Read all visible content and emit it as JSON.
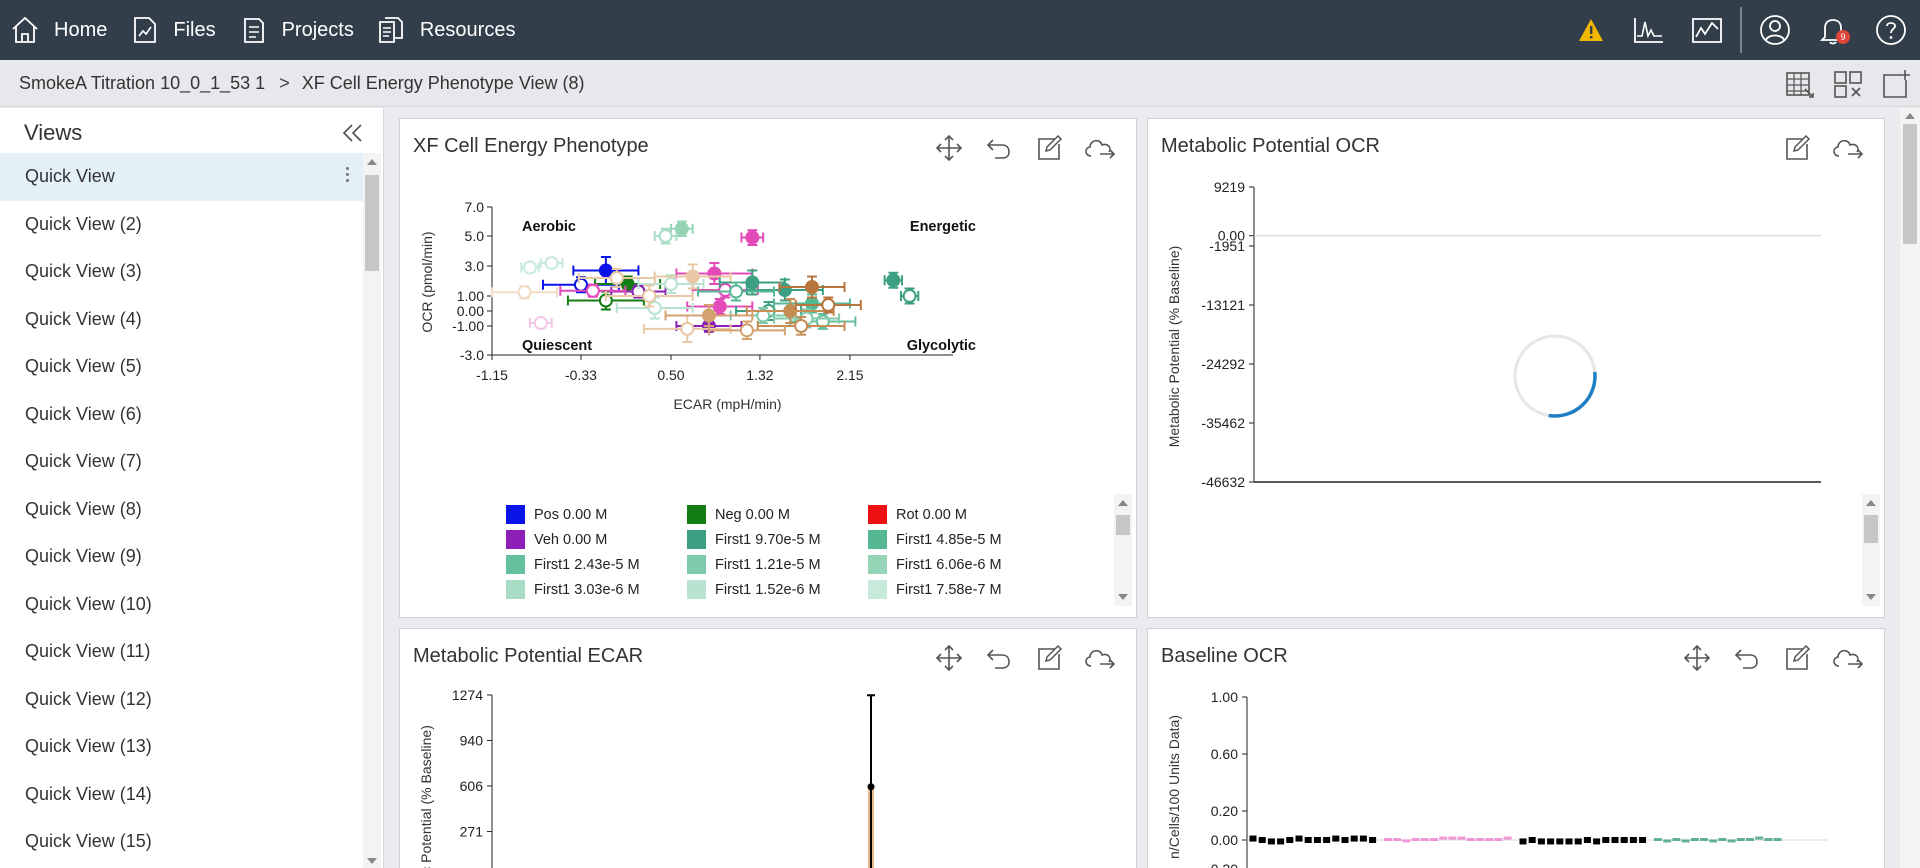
{
  "nav": {
    "items": [
      {
        "label": "Home",
        "icon": "home-icon"
      },
      {
        "label": "Files",
        "icon": "files-icon"
      },
      {
        "label": "Projects",
        "icon": "projects-icon"
      },
      {
        "label": "Resources",
        "icon": "resources-icon"
      }
    ],
    "right_icons": [
      "warning-icon",
      "waveform-icon",
      "analysis-icon",
      "user-icon",
      "bell-icon",
      "help-icon"
    ],
    "notification_count": "9",
    "warning_color": "#f5b800"
  },
  "breadcrumb": {
    "items": [
      "SmokeA Titration 10_0_1_53 1",
      "XF Cell Energy Phenotype View (8)"
    ],
    "separator": ">",
    "tools": [
      "table-view-icon",
      "layout-grid-icon",
      "add-view-icon"
    ]
  },
  "sidebar": {
    "title": "Views",
    "active_index": 0,
    "items": [
      "Quick View",
      "Quick View (2)",
      "Quick View (3)",
      "Quick View (4)",
      "Quick View (5)",
      "Quick View (6)",
      "Quick View (7)",
      "Quick View (8)",
      "Quick View (9)",
      "Quick View (10)",
      "Quick View (11)",
      "Quick View (12)",
      "Quick View (13)",
      "Quick View (14)",
      "Quick View (15)"
    ]
  },
  "panels": {
    "phenotype": {
      "title": "XF Cell Energy Phenotype",
      "tools": [
        "move-icon",
        "undo-icon",
        "edit-icon",
        "cloud-export-icon"
      ]
    },
    "mp_ocr": {
      "title": "Metabolic Potential OCR",
      "tools": [
        "edit-icon",
        "cloud-export-icon"
      ],
      "loading": true
    },
    "mp_ecar": {
      "title": "Metabolic Potential ECAR",
      "tools": [
        "move-icon",
        "undo-icon",
        "edit-icon",
        "cloud-export-icon"
      ]
    },
    "baseline_ocr": {
      "title": "Baseline OCR",
      "tools": [
        "move-icon",
        "undo-icon",
        "edit-icon",
        "cloud-export-icon"
      ]
    }
  },
  "chart_data": [
    {
      "id": "phenotype",
      "type": "scatter",
      "title": "",
      "xlabel": "ECAR (mpH/min)",
      "ylabel": "OCR (pmol/min)",
      "xticks": [
        "-1.15",
        "-0.33",
        "0.50",
        "1.32",
        "2.15"
      ],
      "xtick_values": [
        -1.15,
        -0.33,
        0.5,
        1.32,
        2.15
      ],
      "yticks": [
        "7.0",
        "5.0",
        "3.0",
        "1.00",
        "0.00",
        "-1.00",
        "-3.0"
      ],
      "ytick_values": [
        7.0,
        5.0,
        3.0,
        1.0,
        0.0,
        -1.0,
        -3.0
      ],
      "xlim": [
        -1.15,
        3.1
      ],
      "ylim": [
        -3.0,
        7.0
      ],
      "quadrants": [
        "Aerobic",
        "Energetic",
        "Quiescent",
        "Glycolytic"
      ],
      "legend": [
        {
          "name": "Pos 0.00 M",
          "color": "#0a14e8"
        },
        {
          "name": "Neg 0.00 M",
          "color": "#137d13"
        },
        {
          "name": "Rot 0.00 M",
          "color": "#ee1111"
        },
        {
          "name": "Veh 0.00 M",
          "color": "#8b1fb8"
        },
        {
          "name": "First1 9.70e-5 M",
          "color": "#3c9f82"
        },
        {
          "name": "First1 4.85e-5 M",
          "color": "#56b893"
        },
        {
          "name": "First1 2.43e-5 M",
          "color": "#64bf9c"
        },
        {
          "name": "First1 1.21e-5 M",
          "color": "#7fcaaa"
        },
        {
          "name": "First1 6.06e-6 M",
          "color": "#96d4b8"
        },
        {
          "name": "First1 3.03e-6 M",
          "color": "#a8dcc4"
        },
        {
          "name": "First1 1.52e-6 M",
          "color": "#b9e3d0"
        },
        {
          "name": "First1 7.58e-7 M",
          "color": "#c8eadb"
        }
      ],
      "points": [
        {
          "x": -0.1,
          "y": 2.7,
          "xerr": 0.3,
          "yerr": 0.9,
          "color": "#0a14e8",
          "filled": true
        },
        {
          "x": -0.33,
          "y": 1.75,
          "xerr": 0.35,
          "yerr": 0.5,
          "color": "#0a14e8",
          "filled": false
        },
        {
          "x": -0.1,
          "y": 0.7,
          "xerr": 0.35,
          "yerr": 0.6,
          "color": "#137d13",
          "filled": false
        },
        {
          "x": 0.1,
          "y": 1.8,
          "xerr": 0.3,
          "yerr": 0.5,
          "color": "#137d13",
          "filled": true
        },
        {
          "x": 0.85,
          "y": -1.0,
          "xerr": 0.3,
          "yerr": 0.4,
          "color": "#8b1fb8",
          "filled": true
        },
        {
          "x": 0.2,
          "y": 1.3,
          "xerr": 0.25,
          "yerr": 0.4,
          "color": "#8b1fb8",
          "filled": false
        },
        {
          "x": 1.25,
          "y": 4.9,
          "xerr": 0.1,
          "yerr": 0.5,
          "color": "#e34bb8",
          "filled": true
        },
        {
          "x": 0.9,
          "y": 2.5,
          "xerr": 0.35,
          "yerr": 0.7,
          "color": "#e34bb8",
          "filled": true
        },
        {
          "x": -0.22,
          "y": 1.35,
          "xerr": 0.3,
          "yerr": 0.4,
          "color": "#e34bb8",
          "filled": false
        },
        {
          "x": 1.0,
          "y": 1.4,
          "xerr": 0.3,
          "yerr": 0.5,
          "color": "#e34bb8",
          "filled": false
        },
        {
          "x": 0.95,
          "y": 0.3,
          "xerr": 0.3,
          "yerr": 0.5,
          "color": "#e34bb8",
          "filled": true
        },
        {
          "x": 2.55,
          "y": 2.05,
          "xerr": 0.08,
          "yerr": 0.5,
          "color": "#3c9f82",
          "filled": true
        },
        {
          "x": 2.7,
          "y": 1.0,
          "xerr": 0.08,
          "yerr": 0.5,
          "color": "#3c9f82",
          "filled": false
        },
        {
          "x": 1.25,
          "y": 1.9,
          "xerr": 0.3,
          "yerr": 0.8,
          "color": "#3c9f82",
          "filled": true
        },
        {
          "x": 1.55,
          "y": 1.4,
          "xerr": 0.35,
          "yerr": 0.7,
          "color": "#3c9f82",
          "filled": true
        },
        {
          "x": 1.4,
          "y": 0.0,
          "xerr": 0.3,
          "yerr": 0.6,
          "color": "#3c9f82",
          "filled": false
        },
        {
          "x": 1.8,
          "y": 0.5,
          "xerr": 0.35,
          "yerr": 0.6,
          "color": "#56b893",
          "filled": true
        },
        {
          "x": 1.1,
          "y": 1.3,
          "xerr": 0.35,
          "yerr": 0.6,
          "color": "#56b893",
          "filled": false
        },
        {
          "x": 1.9,
          "y": -0.7,
          "xerr": 0.3,
          "yerr": 0.5,
          "color": "#64bf9c",
          "filled": false
        },
        {
          "x": 1.75,
          "y": -0.5,
          "xerr": 0.3,
          "yerr": 0.6,
          "color": "#7fcaaa",
          "filled": false
        },
        {
          "x": 1.35,
          "y": -0.3,
          "xerr": 0.3,
          "yerr": 0.5,
          "color": "#7fcaaa",
          "filled": false
        },
        {
          "x": 0.6,
          "y": 5.5,
          "xerr": 0.1,
          "yerr": 0.5,
          "color": "#96d4b8",
          "filled": true
        },
        {
          "x": 0.45,
          "y": 5.0,
          "xerr": 0.1,
          "yerr": 0.5,
          "color": "#a8dcc4",
          "filled": false
        },
        {
          "x": 0.35,
          "y": 0.2,
          "xerr": 0.35,
          "yerr": 0.7,
          "color": "#b9e3d0",
          "filled": false
        },
        {
          "x": 0.5,
          "y": 1.8,
          "xerr": 0.3,
          "yerr": 0.6,
          "color": "#b9e3d0",
          "filled": false
        },
        {
          "x": -0.6,
          "y": 3.2,
          "xerr": 0.1,
          "yerr": 0.3,
          "color": "#c8eadb",
          "filled": false
        },
        {
          "x": -0.8,
          "y": 2.9,
          "xerr": 0.08,
          "yerr": 0.3,
          "color": "#c8eadb",
          "filled": false
        },
        {
          "x": 0.0,
          "y": 2.2,
          "xerr": 0.35,
          "yerr": 0.6,
          "color": "#e9c9a5",
          "filled": false
        },
        {
          "x": 0.7,
          "y": 2.3,
          "xerr": 0.35,
          "yerr": 0.8,
          "color": "#e9c9a5",
          "filled": true
        },
        {
          "x": 0.3,
          "y": 1.0,
          "xerr": 0.4,
          "yerr": 0.7,
          "color": "#e9c9a5",
          "filled": false
        },
        {
          "x": 0.65,
          "y": -1.2,
          "xerr": 0.4,
          "yerr": 0.9,
          "color": "#e9c9a5",
          "filled": false
        },
        {
          "x": -0.85,
          "y": 1.25,
          "xerr": 0.3,
          "yerr": 0.4,
          "color": "#f2dcc6",
          "filled": false
        },
        {
          "x": -0.7,
          "y": -0.8,
          "xerr": 0.1,
          "yerr": 0.3,
          "color": "#f0c8e6",
          "filled": false
        },
        {
          "x": 1.8,
          "y": 1.6,
          "xerr": 0.3,
          "yerr": 0.7,
          "color": "#b8753d",
          "filled": true
        },
        {
          "x": 1.6,
          "y": 0.0,
          "xerr": 0.4,
          "yerr": 0.8,
          "color": "#c68d55",
          "filled": true
        },
        {
          "x": 1.7,
          "y": -1.0,
          "xerr": 0.4,
          "yerr": 0.6,
          "color": "#c68d55",
          "filled": false
        },
        {
          "x": 1.2,
          "y": -1.3,
          "xerr": 0.35,
          "yerr": 0.6,
          "color": "#d3a270",
          "filled": false
        },
        {
          "x": 0.85,
          "y": -0.3,
          "xerr": 0.4,
          "yerr": 0.7,
          "color": "#d3a270",
          "filled": true
        },
        {
          "x": 1.95,
          "y": 0.4,
          "xerr": 0.3,
          "yerr": 0.5,
          "color": "#b8753d",
          "filled": false
        }
      ]
    },
    {
      "id": "mp_ocr",
      "type": "line",
      "title": "",
      "ylabel": "Metabolic Potential (% Baseline)",
      "yticks": [
        "9219",
        "0.00",
        "-1951",
        "-13121",
        "-24292",
        "-35462",
        "-46632"
      ],
      "ytick_values": [
        9219,
        0,
        -1951,
        -13121,
        -24292,
        -35462,
        -46632
      ],
      "ylim": [
        -46632,
        9219
      ],
      "series": []
    },
    {
      "id": "mp_ecar",
      "type": "bar",
      "title": "",
      "ylabel": "ic Potential (% Baseline)",
      "yticks": [
        "1274",
        "940",
        "606",
        "271"
      ],
      "ytick_values": [
        1274,
        940,
        606,
        271
      ],
      "ylim": [
        -63,
        1274
      ],
      "bars": [
        {
          "value": 600,
          "err": 672,
          "color": "#e9b98e"
        }
      ]
    },
    {
      "id": "baseline_ocr",
      "type": "scatter",
      "title": "",
      "ylabel": "n/Cells/100 Units Data)",
      "yticks": [
        "1.00",
        "0.60",
        "0.20",
        "0.00",
        "-0.20"
      ],
      "ytick_values": [
        1.0,
        0.6,
        0.2,
        0.0,
        -0.2
      ],
      "ylim": [
        -0.2,
        1.0
      ],
      "groups": [
        {
          "color": "#000000",
          "values": [
            0.01,
            0.0,
            -0.01,
            -0.01,
            0.0,
            0.01,
            0.0,
            0.0,
            0.0,
            0.01,
            0.0,
            0.01,
            0.01,
            0.0
          ]
        },
        {
          "color": "#f080d0",
          "values": [
            0.0,
            0.0,
            -0.01,
            0.0,
            0.0,
            0.0,
            0.01,
            0.01,
            0.01,
            0.0,
            0.0,
            0.0,
            0.0,
            0.01
          ]
        },
        {
          "color": "#000000",
          "values": [
            -0.01,
            0.0,
            -0.01,
            -0.01,
            -0.01,
            -0.01,
            -0.01,
            0.0,
            -0.01,
            0.0,
            0.0,
            0.0,
            0.0,
            0.0
          ]
        },
        {
          "color": "#3c9f82",
          "values": [
            0.0,
            -0.01,
            0.0,
            -0.01,
            0.0,
            0.0,
            -0.01,
            0.0,
            -0.01,
            0.0,
            0.0,
            0.01,
            0.0,
            0.0
          ]
        }
      ]
    }
  ]
}
